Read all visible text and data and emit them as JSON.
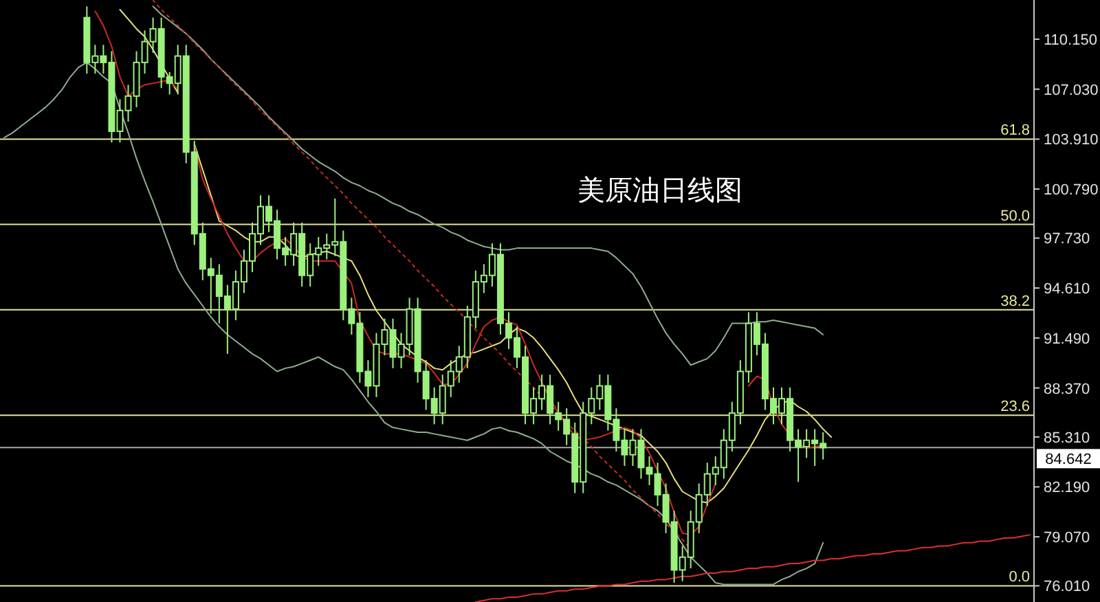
{
  "chart_data": {
    "type": "candlestick",
    "title": "美原油日线图",
    "tick_labels": "y",
    "color": "#9cf07c",
    "categories": [
      null,
      null,
      null,
      null,
      null,
      null,
      null,
      null,
      null,
      null,
      null,
      null,
      null,
      null,
      null,
      null,
      null,
      null,
      null,
      null,
      null,
      null,
      null,
      null,
      null,
      null,
      null,
      null,
      null,
      null,
      null,
      null,
      null,
      null,
      null,
      null,
      null,
      null,
      null,
      null,
      null,
      null,
      null,
      null,
      null,
      null,
      null,
      null,
      null,
      null,
      null,
      null,
      null,
      null,
      null,
      null,
      null,
      null,
      null,
      null,
      null,
      null,
      null,
      null,
      null,
      null,
      null,
      null,
      null,
      null,
      null,
      null,
      null,
      null,
      null,
      null,
      null,
      null,
      null,
      null,
      null,
      null,
      null,
      null,
      null,
      null,
      null,
      null,
      null,
      null,
      null,
      null,
      null,
      null,
      null,
      null,
      null,
      null,
      null,
      null,
      null,
      null,
      null,
      null,
      null,
      null,
      null,
      null,
      null,
      null,
      null,
      null,
      null,
      null,
      null,
      null,
      null,
      null,
      null,
      null,
      null,
      null,
      null,
      null,
      null
    ],
    "ohlc": [
      null,
      null,
      null,
      null,
      null,
      null,
      null,
      null,
      null,
      null,
      [
        111.5,
        112.2,
        108.0,
        108.7
      ],
      [
        108.7,
        109.8,
        108.0,
        109.1
      ],
      [
        109.1,
        109.8,
        108.0,
        108.7
      ],
      [
        108.7,
        109.4,
        103.7,
        104.4
      ],
      [
        104.4,
        106.4,
        103.7,
        105.7
      ],
      [
        105.7,
        107.3,
        105.0,
        106.6
      ],
      [
        106.6,
        109.4,
        105.9,
        108.7
      ],
      [
        108.7,
        110.7,
        108.0,
        110.0
      ],
      [
        110.0,
        111.5,
        109.3,
        110.8
      ],
      [
        110.8,
        111.5,
        107.1,
        107.8
      ],
      [
        107.8,
        108.1,
        106.7,
        107.4
      ],
      [
        107.4,
        109.8,
        106.7,
        109.1
      ],
      [
        109.1,
        109.8,
        102.4,
        103.1
      ],
      [
        103.1,
        103.8,
        97.3,
        98.0
      ],
      [
        98.0,
        98.7,
        95.1,
        95.8
      ],
      [
        95.8,
        96.5,
        93.0,
        95.4
      ],
      [
        95.4,
        96.1,
        92.4,
        94.1
      ],
      [
        94.1,
        94.8,
        90.5,
        93.3
      ],
      [
        93.3,
        95.7,
        92.6,
        95.0
      ],
      [
        95.0,
        97.0,
        94.3,
        96.3
      ],
      [
        96.3,
        98.7,
        95.6,
        98.0
      ],
      [
        98.0,
        100.4,
        97.3,
        99.7
      ],
      [
        99.7,
        100.4,
        98.1,
        98.8
      ],
      [
        98.8,
        99.5,
        96.4,
        97.1
      ],
      [
        97.1,
        97.8,
        96.0,
        96.7
      ],
      [
        96.7,
        98.7,
        96.0,
        98.0
      ],
      [
        98.0,
        98.7,
        94.7,
        95.4
      ],
      [
        95.4,
        97.4,
        94.7,
        96.7
      ],
      [
        96.7,
        97.8,
        96.0,
        97.1
      ],
      [
        97.1,
        98.0,
        96.4,
        97.3
      ],
      [
        97.3,
        100.2,
        96.6,
        97.5
      ],
      [
        97.5,
        98.2,
        92.6,
        93.3
      ],
      [
        93.3,
        94.0,
        91.7,
        92.4
      ],
      [
        92.4,
        93.1,
        88.7,
        89.4
      ],
      [
        89.4,
        90.1,
        87.8,
        88.5
      ],
      [
        88.5,
        91.8,
        87.8,
        91.1
      ],
      [
        91.1,
        92.7,
        90.4,
        92.0
      ],
      [
        92.0,
        92.7,
        89.6,
        90.3
      ],
      [
        90.3,
        91.8,
        89.6,
        91.1
      ],
      [
        91.1,
        94.0,
        90.4,
        93.3
      ],
      [
        93.3,
        94.0,
        88.7,
        89.4
      ],
      [
        89.4,
        90.1,
        87.0,
        87.7
      ],
      [
        87.7,
        88.4,
        86.1,
        86.8
      ],
      [
        86.8,
        89.2,
        86.1,
        88.5
      ],
      [
        88.5,
        90.1,
        87.8,
        89.4
      ],
      [
        89.4,
        91.0,
        88.7,
        90.3
      ],
      [
        90.3,
        93.5,
        89.6,
        92.8
      ],
      [
        92.8,
        95.7,
        92.1,
        95.0
      ],
      [
        95.0,
        96.1,
        94.3,
        95.4
      ],
      [
        95.4,
        97.4,
        94.7,
        96.7
      ],
      [
        96.7,
        97.4,
        91.7,
        92.4
      ],
      [
        92.4,
        93.1,
        90.8,
        91.5
      ],
      [
        91.5,
        92.2,
        89.6,
        90.3
      ],
      [
        90.3,
        91.0,
        86.1,
        86.8
      ],
      [
        86.8,
        88.4,
        86.1,
        87.7
      ],
      [
        87.7,
        89.2,
        87.0,
        88.5
      ],
      [
        88.5,
        89.2,
        86.1,
        86.8
      ],
      [
        86.8,
        87.5,
        85.7,
        86.4
      ],
      [
        86.4,
        87.1,
        84.8,
        85.5
      ],
      [
        85.5,
        86.2,
        81.8,
        82.5
      ],
      [
        82.5,
        87.5,
        81.8,
        86.8
      ],
      [
        86.8,
        88.4,
        86.1,
        87.7
      ],
      [
        87.7,
        89.2,
        87.0,
        88.5
      ],
      [
        88.5,
        89.2,
        85.7,
        86.4
      ],
      [
        86.4,
        87.1,
        84.4,
        85.1
      ],
      [
        85.1,
        85.8,
        83.5,
        84.2
      ],
      [
        84.2,
        85.8,
        83.5,
        85.1
      ],
      [
        85.1,
        85.8,
        82.7,
        83.4
      ],
      [
        83.4,
        84.1,
        82.3,
        83.0
      ],
      [
        83.0,
        83.7,
        81.0,
        81.7
      ],
      [
        81.7,
        82.4,
        79.3,
        80.0
      ],
      [
        80.0,
        80.7,
        76.2,
        77.0
      ],
      [
        77.0,
        78.5,
        76.3,
        77.8
      ],
      [
        77.8,
        80.7,
        77.1,
        80.0
      ],
      [
        80.0,
        82.4,
        79.3,
        81.7
      ],
      [
        81.7,
        83.7,
        81.0,
        83.0
      ],
      [
        83.0,
        84.1,
        82.3,
        83.4
      ],
      [
        83.4,
        85.8,
        82.7,
        85.1
      ],
      [
        85.1,
        87.5,
        84.4,
        86.8
      ],
      [
        86.8,
        90.1,
        86.1,
        89.4
      ],
      [
        89.4,
        93.1,
        88.7,
        92.4
      ],
      [
        92.4,
        93.1,
        90.4,
        91.1
      ],
      [
        91.1,
        91.8,
        87.0,
        87.7
      ],
      [
        87.7,
        88.4,
        86.1,
        86.8
      ],
      [
        86.8,
        88.4,
        86.1,
        87.7
      ],
      [
        87.7,
        88.4,
        84.4,
        85.1
      ],
      [
        85.1,
        85.8,
        82.5,
        84.7
      ],
      [
        84.7,
        85.8,
        84.0,
        85.1
      ],
      [
        85.1,
        85.8,
        83.5,
        84.9
      ],
      [
        84.9,
        85.6,
        83.9,
        84.64
      ],
      null,
      null,
      null,
      null,
      null,
      null,
      null,
      null,
      null,
      null,
      null,
      null,
      null,
      null,
      null,
      null,
      null,
      null,
      null,
      null,
      null,
      null,
      null,
      null,
      null
    ],
    "series": [
      {
        "type": "line",
        "color": "#8fae8f",
        "values": [
          null,
          null,
          null,
          null,
          null,
          null,
          null,
          null,
          null,
          null,
          null,
          null,
          null,
          null,
          null,
          null,
          null,
          null,
          112.2,
          111.7,
          111.3,
          110.9,
          110.5,
          110.0,
          109.5,
          108.9,
          108.4,
          107.9,
          107.4,
          106.9,
          106.4,
          105.9,
          105.3,
          104.8,
          104.3,
          103.8,
          103.3,
          102.9,
          102.5,
          102.2,
          101.9,
          101.5,
          101.2,
          101.0,
          100.7,
          100.5,
          100.2,
          99.9,
          99.7,
          99.4,
          99.2,
          98.9,
          98.6,
          98.4,
          98.1,
          97.9,
          97.6,
          97.4,
          97.2,
          97.1,
          97.0,
          97.0,
          97.1,
          97.1,
          97.1,
          97.1,
          97.1,
          97.1,
          97.1,
          97.1,
          97.1,
          97.1,
          97.0,
          96.9,
          96.5,
          96.0,
          95.5,
          94.7,
          93.7,
          92.7,
          91.8,
          91.1,
          90.5,
          89.8,
          90.0,
          90.2,
          90.7,
          91.5,
          92.4,
          92.4,
          92.4,
          92.5,
          92.5,
          92.6,
          92.5,
          92.4,
          92.3,
          92.2,
          92.1,
          91.7,
          null,
          null,
          null,
          null,
          null,
          null,
          null,
          null,
          null,
          null,
          null,
          null,
          null,
          null,
          null,
          null,
          null,
          null,
          null,
          null,
          null,
          null,
          null,
          null,
          null
        ]
      },
      {
        "type": "line",
        "color": "#8fae8f",
        "values": [
          104.0,
          104.3,
          104.7,
          105.1,
          105.5,
          105.9,
          106.4,
          107.0,
          107.8,
          108.4,
          108.7,
          108.3,
          107.8,
          107.4,
          105.8,
          104.3,
          102.7,
          101.3,
          100.0,
          98.6,
          97.2,
          95.8,
          94.9,
          94.2,
          93.5,
          92.8,
          92.2,
          91.7,
          91.3,
          90.9,
          90.5,
          90.2,
          89.8,
          89.4,
          89.6,
          89.7,
          89.9,
          90.1,
          90.3,
          90.0,
          89.7,
          89.5,
          88.9,
          88.2,
          87.5,
          86.9,
          86.2,
          85.9,
          85.8,
          85.7,
          85.6,
          85.6,
          85.5,
          85.4,
          85.3,
          85.2,
          85.1,
          85.3,
          85.5,
          85.8,
          85.9,
          85.7,
          85.6,
          85.4,
          85.2,
          84.9,
          84.4,
          84.1,
          83.8,
          83.6,
          83.3,
          83.0,
          82.8,
          82.5,
          82.3,
          82.0,
          81.7,
          81.4,
          81.0,
          80.7,
          80.2,
          79.4,
          78.6,
          77.8,
          77.3,
          76.8,
          76.2,
          76.1,
          76.1,
          76.1,
          76.1,
          76.1,
          76.1,
          76.1,
          76.4,
          76.6,
          76.9,
          77.1,
          77.4,
          78.7,
          null,
          null,
          null,
          null,
          null,
          null,
          null,
          null,
          null,
          null,
          null,
          null,
          null,
          null,
          null,
          null,
          null,
          null,
          null,
          null,
          null,
          null,
          null,
          null,
          null
        ]
      },
      {
        "type": "line",
        "color": "#e8e07a",
        "values": [
          null,
          null,
          null,
          null,
          null,
          null,
          null,
          null,
          null,
          null,
          null,
          null,
          null,
          null,
          112.0,
          111.4,
          110.8,
          110.3,
          109.5,
          108.6,
          107.7,
          106.8,
          null,
          103.6,
          102.0,
          100.4,
          98.8,
          98.5,
          98.2,
          97.8,
          97.5,
          97.5,
          97.8,
          97.8,
          97.3,
          96.7,
          96.5,
          96.7,
          96.8,
          96.9,
          96.7,
          96.5,
          96.3,
          95.4,
          94.2,
          93.2,
          92.5,
          91.8,
          91.1,
          90.7,
          90.3,
          90.0,
          89.6,
          89.5,
          89.9,
          90.2,
          90.5,
          90.6,
          90.8,
          91.0,
          91.2,
          91.7,
          92.1,
          91.9,
          91.5,
          90.9,
          90.2,
          89.5,
          88.7,
          87.7,
          86.8,
          86.6,
          86.4,
          86.2,
          86.0,
          85.8,
          85.6,
          85.4,
          84.9,
          84.4,
          83.7,
          82.7,
          81.9,
          81.6,
          81.3,
          81.2,
          81.6,
          82.1,
          82.9,
          83.7,
          84.5,
          85.4,
          86.4,
          87.0,
          87.4,
          87.6,
          87.2,
          86.9,
          86.4,
          85.8,
          85.3,
          null,
          null,
          null,
          null,
          null,
          null,
          null,
          null,
          null,
          null,
          null,
          null,
          null,
          null,
          null,
          null,
          null,
          null,
          null,
          null,
          null,
          null,
          null,
          null
        ]
      },
      {
        "type": "line",
        "color": "#cc2a22",
        "values": [
          null,
          null,
          null,
          null,
          null,
          null,
          null,
          null,
          null,
          null,
          null,
          111.9,
          111.0,
          109.7,
          107.8,
          106.6,
          107.0,
          107.3,
          107.4,
          107.5,
          107.6,
          107.0,
          null,
          103.5,
          101.4,
          100.2,
          99.1,
          98.0,
          97.1,
          96.3,
          96.3,
          96.8,
          97.2,
          97.5,
          97.7,
          97.2,
          96.6,
          96.3,
          96.3,
          96.3,
          96.3,
          95.6,
          94.9,
          92.6,
          91.6,
          90.7,
          90.5,
          90.5,
          90.5,
          90.3,
          90.1,
          89.9,
          89.3,
          88.6,
          88.6,
          89.2,
          89.9,
          91.1,
          92.2,
          92.6,
          92.8,
          92.5,
          92.3,
          91.1,
          89.8,
          88.7,
          87.7,
          86.8,
          86.0,
          85.4,
          85.1,
          85.2,
          85.3,
          85.5,
          85.7,
          85.9,
          85.7,
          85.2,
          84.3,
          83.2,
          82.1,
          80.6,
          79.3,
          79.2,
          79.7,
          81.1,
          82.4,
          null,
          null,
          null,
          88.5,
          89.1,
          88.9,
          87.2,
          86.1,
          85.4,
          84.9,
          84.6,
          84.7,
          84.8,
          null,
          null,
          null,
          null,
          null,
          null,
          null,
          null,
          null,
          null,
          null,
          null,
          null,
          null,
          null,
          null,
          null,
          null,
          null,
          null,
          null,
          null,
          null,
          null,
          null
        ]
      },
      {
        "type": "line",
        "color": "#cc2a22",
        "line_style": "dotted",
        "values": [
          null,
          null,
          null,
          null,
          null,
          null,
          null,
          null,
          null,
          null,
          null,
          null,
          null,
          null,
          null,
          null,
          null,
          null,
          112.6,
          112.0,
          111.5,
          111.0,
          110.5,
          109.9,
          109.4,
          108.9,
          108.4,
          107.8,
          107.3,
          106.8,
          106.3,
          105.7,
          105.2,
          104.7,
          104.2,
          103.6,
          103.1,
          102.6,
          102.0,
          101.5,
          101.0,
          100.5,
          99.9,
          99.4,
          98.9,
          98.4,
          97.8,
          97.3,
          96.8,
          96.3,
          95.7,
          95.2,
          94.7,
          94.1,
          93.6,
          93.1,
          92.6,
          92.0,
          91.5,
          91.0,
          90.5,
          89.9,
          89.4,
          88.9,
          88.4,
          87.8,
          87.3,
          86.8,
          86.2,
          85.7,
          85.2,
          84.7,
          84.1,
          83.6,
          83.1,
          82.6,
          82.0,
          81.5,
          81.0,
          80.5,
          79.9,
          79.4,
          78.9,
          78.3,
          null,
          null,
          null,
          null,
          null,
          null,
          null,
          null,
          null,
          null,
          null,
          null,
          null,
          null,
          null,
          null,
          null,
          null,
          null,
          null,
          null,
          null,
          null,
          null,
          null,
          null,
          null,
          null,
          null,
          null,
          null,
          null,
          null,
          null,
          null,
          null,
          null,
          null,
          null,
          null,
          null
        ]
      },
      {
        "type": "line",
        "color": "#dd3030",
        "values": [
          null,
          null,
          null,
          null,
          null,
          null,
          null,
          null,
          null,
          null,
          null,
          null,
          null,
          null,
          null,
          null,
          null,
          null,
          null,
          null,
          null,
          null,
          null,
          null,
          null,
          null,
          null,
          null,
          null,
          null,
          null,
          null,
          null,
          null,
          null,
          null,
          null,
          null,
          null,
          null,
          null,
          null,
          null,
          null,
          null,
          null,
          null,
          null,
          null,
          null,
          null,
          null,
          null,
          null,
          null,
          null,
          null,
          75.0,
          75.1,
          75.2,
          75.2,
          75.3,
          75.3,
          75.4,
          75.5,
          75.5,
          75.6,
          75.7,
          75.7,
          75.8,
          75.8,
          75.9,
          76.0,
          76.0,
          76.1,
          76.1,
          76.2,
          76.3,
          76.3,
          76.4,
          76.4,
          76.5,
          76.6,
          76.6,
          76.7,
          76.8,
          76.8,
          76.9,
          76.9,
          77.0,
          77.1,
          77.1,
          77.2,
          77.2,
          77.3,
          77.4,
          77.4,
          77.5,
          77.6,
          77.6,
          77.7,
          77.7,
          77.8,
          77.9,
          77.9,
          78.0,
          78.0,
          78.1,
          78.2,
          78.2,
          78.3,
          78.4,
          78.4,
          78.5,
          78.5,
          78.6,
          78.7,
          78.7,
          78.8,
          78.8,
          78.9,
          79.0,
          79.0,
          79.1,
          79.2
        ]
      }
    ],
    "ref_lines": [
      {
        "axis": "y2",
        "value": 61.8,
        "label": "61.8",
        "color": "#e6e69a"
      },
      {
        "axis": "y2",
        "value": 50.0,
        "label": "50.0",
        "color": "#e6e69a"
      },
      {
        "axis": "y2",
        "value": 38.2,
        "label": "38.2",
        "color": "#e6e69a"
      },
      {
        "axis": "y2",
        "value": 23.6,
        "label": "23.6",
        "color": "#e6e69a"
      },
      {
        "axis": "y2",
        "value": 0.0,
        "label": "0.0",
        "color": "#e6e69a"
      },
      {
        "axis": "y",
        "value": 84.642,
        "label": "84.642",
        "color": "#aaaaaa"
      }
    ],
    "ylim": [
      75.0,
      112.6
    ],
    "y2lim": [
      -2.24,
      81.05
    ],
    "yticks": [
      {
        "value": 76.01,
        "label": "76.010"
      },
      {
        "value": 79.07,
        "label": "79.070"
      },
      {
        "value": 82.19,
        "label": "82.190"
      },
      {
        "value": 85.31,
        "label": "85.310"
      },
      {
        "value": 88.37,
        "label": "88.370"
      },
      {
        "value": 91.49,
        "label": "91.490"
      },
      {
        "value": 94.61,
        "label": "94.610"
      },
      {
        "value": 97.73,
        "label": "97.730"
      },
      {
        "value": 100.79,
        "label": "100.790"
      },
      {
        "value": 103.91,
        "label": "103.910"
      },
      {
        "value": 107.03,
        "label": "107.030"
      },
      {
        "value": 110.15,
        "label": "110.150"
      }
    ]
  }
}
